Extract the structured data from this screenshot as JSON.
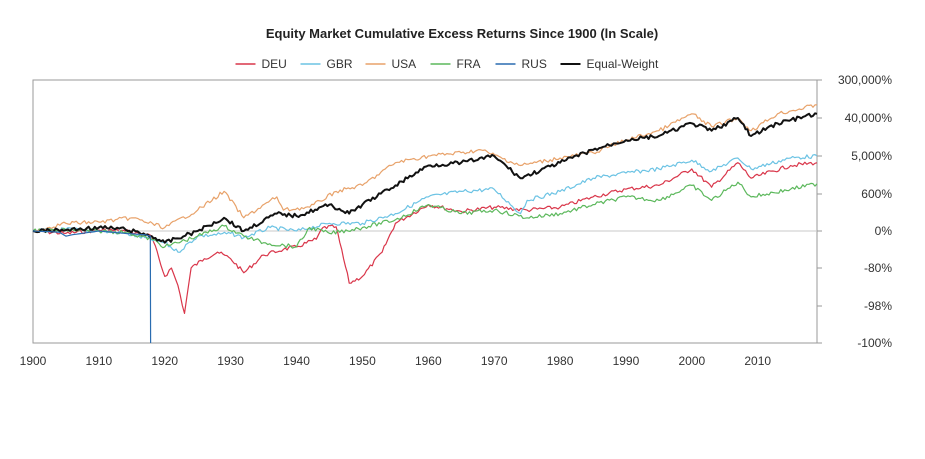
{
  "chart_data": {
    "type": "line",
    "title": "Equity Market Cumulative Excess Returns Since 1900 (ln Scale)",
    "xlabel": "",
    "ylabel": "",
    "xlim": [
      1900,
      2019
    ],
    "x_ticks": [
      "1900",
      "1910",
      "1920",
      "1930",
      "1940",
      "1950",
      "1960",
      "1970",
      "1980",
      "1990",
      "2000",
      "2010"
    ],
    "y_scale": "log(1+r)",
    "ylim": [
      -100,
      300000
    ],
    "y_ticks": [
      {
        "value": 300000,
        "label": "300,000%"
      },
      {
        "value": 40000,
        "label": "40,000%"
      },
      {
        "value": 5000,
        "label": "5,000%"
      },
      {
        "value": 600,
        "label": "600%"
      },
      {
        "value": 0,
        "label": "0%"
      },
      {
        "value": -80,
        "label": "-80%"
      },
      {
        "value": -98,
        "label": "-98%"
      },
      {
        "value": -100,
        "label": "-100%"
      }
    ],
    "legend_position": "top",
    "grid": false,
    "series": [
      {
        "name": "DEU",
        "color": "#d9364a",
        "x": [
          1900,
          1905,
          1910,
          1914,
          1918,
          1920,
          1921,
          1922,
          1923,
          1924,
          1926,
          1928,
          1930,
          1932,
          1935,
          1938,
          1940,
          1943,
          1944,
          1946,
          1948,
          1950,
          1953,
          1955,
          1960,
          1965,
          1970,
          1975,
          1980,
          1985,
          1990,
          1995,
          2000,
          2003,
          2007,
          2009,
          2015,
          2019
        ],
        "y": [
          0,
          -10,
          5,
          0,
          -20,
          -88,
          -80,
          -93,
          -99.4,
          -80,
          -70,
          -60,
          -70,
          -85,
          -65,
          -55,
          -50,
          -30,
          20,
          25,
          -92,
          -88,
          -60,
          50,
          300,
          180,
          250,
          200,
          250,
          500,
          800,
          1000,
          2500,
          900,
          3500,
          1500,
          3000,
          3500
        ]
      },
      {
        "name": "GBR",
        "color": "#6cc3e4",
        "x": [
          1900,
          1905,
          1910,
          1914,
          1920,
          1922,
          1925,
          1930,
          1932,
          1936,
          1940,
          1945,
          1950,
          1955,
          1960,
          1965,
          1970,
          1974,
          1975,
          1980,
          1985,
          1990,
          1995,
          2000,
          2003,
          2007,
          2009,
          2015,
          2019
        ],
        "y": [
          0,
          10,
          0,
          -10,
          -40,
          -60,
          -20,
          -10,
          -25,
          20,
          0,
          50,
          50,
          150,
          500,
          700,
          800,
          150,
          400,
          700,
          1500,
          2000,
          2500,
          4000,
          2200,
          4500,
          2500,
          4500,
          5000
        ]
      },
      {
        "name": "USA",
        "color": "#e8a26a",
        "x": [
          1900,
          1905,
          1910,
          1915,
          1920,
          1925,
          1929,
          1932,
          1937,
          1938,
          1942,
          1946,
          1950,
          1955,
          1960,
          1965,
          1968,
          1974,
          1980,
          1985,
          1990,
          1995,
          2000,
          2003,
          2007,
          2009,
          2013,
          2019
        ],
        "y": [
          0,
          50,
          60,
          100,
          20,
          200,
          700,
          100,
          500,
          200,
          250,
          700,
          1000,
          3500,
          5000,
          6000,
          7000,
          3000,
          4500,
          6000,
          12000,
          20000,
          50000,
          25000,
          40000,
          20000,
          50000,
          80000
        ]
      },
      {
        "name": "FRA",
        "color": "#5cb85c",
        "x": [
          1900,
          1905,
          1910,
          1914,
          1918,
          1920,
          1925,
          1929,
          1932,
          1935,
          1940,
          1942,
          1945,
          1950,
          1955,
          1960,
          1965,
          1970,
          1975,
          1980,
          1985,
          1990,
          1995,
          2000,
          2003,
          2007,
          2009,
          2015,
          2019
        ],
        "y": [
          0,
          5,
          0,
          -5,
          -30,
          -50,
          -20,
          30,
          -20,
          -40,
          -50,
          20,
          -10,
          20,
          80,
          300,
          150,
          200,
          100,
          150,
          300,
          500,
          400,
          1000,
          400,
          1200,
          500,
          800,
          1100
        ]
      },
      {
        "name": "RUS",
        "color": "#2a6cb0",
        "x": [
          1900,
          1904,
          1905,
          1906,
          1910,
          1914,
          1917,
          1917.8,
          1917.85
        ],
        "y": [
          0,
          -5,
          -20,
          -15,
          0,
          -10,
          -15,
          -20,
          -100
        ]
      },
      {
        "name": "Equal-Weight",
        "color": "#111111",
        "x": [
          1900,
          1905,
          1910,
          1914,
          1918,
          1920,
          1925,
          1929,
          1932,
          1937,
          1940,
          1945,
          1948,
          1950,
          1955,
          1960,
          1965,
          1970,
          1974,
          1980,
          1985,
          1990,
          1995,
          2000,
          2003,
          2007,
          2009,
          2013,
          2019
        ],
        "y": [
          0,
          5,
          20,
          10,
          -20,
          -40,
          0,
          100,
          0,
          150,
          120,
          300,
          150,
          300,
          1000,
          3000,
          3500,
          5000,
          1500,
          3500,
          7000,
          12000,
          15000,
          30000,
          20000,
          40000,
          15000,
          30000,
          50000
        ]
      }
    ]
  }
}
